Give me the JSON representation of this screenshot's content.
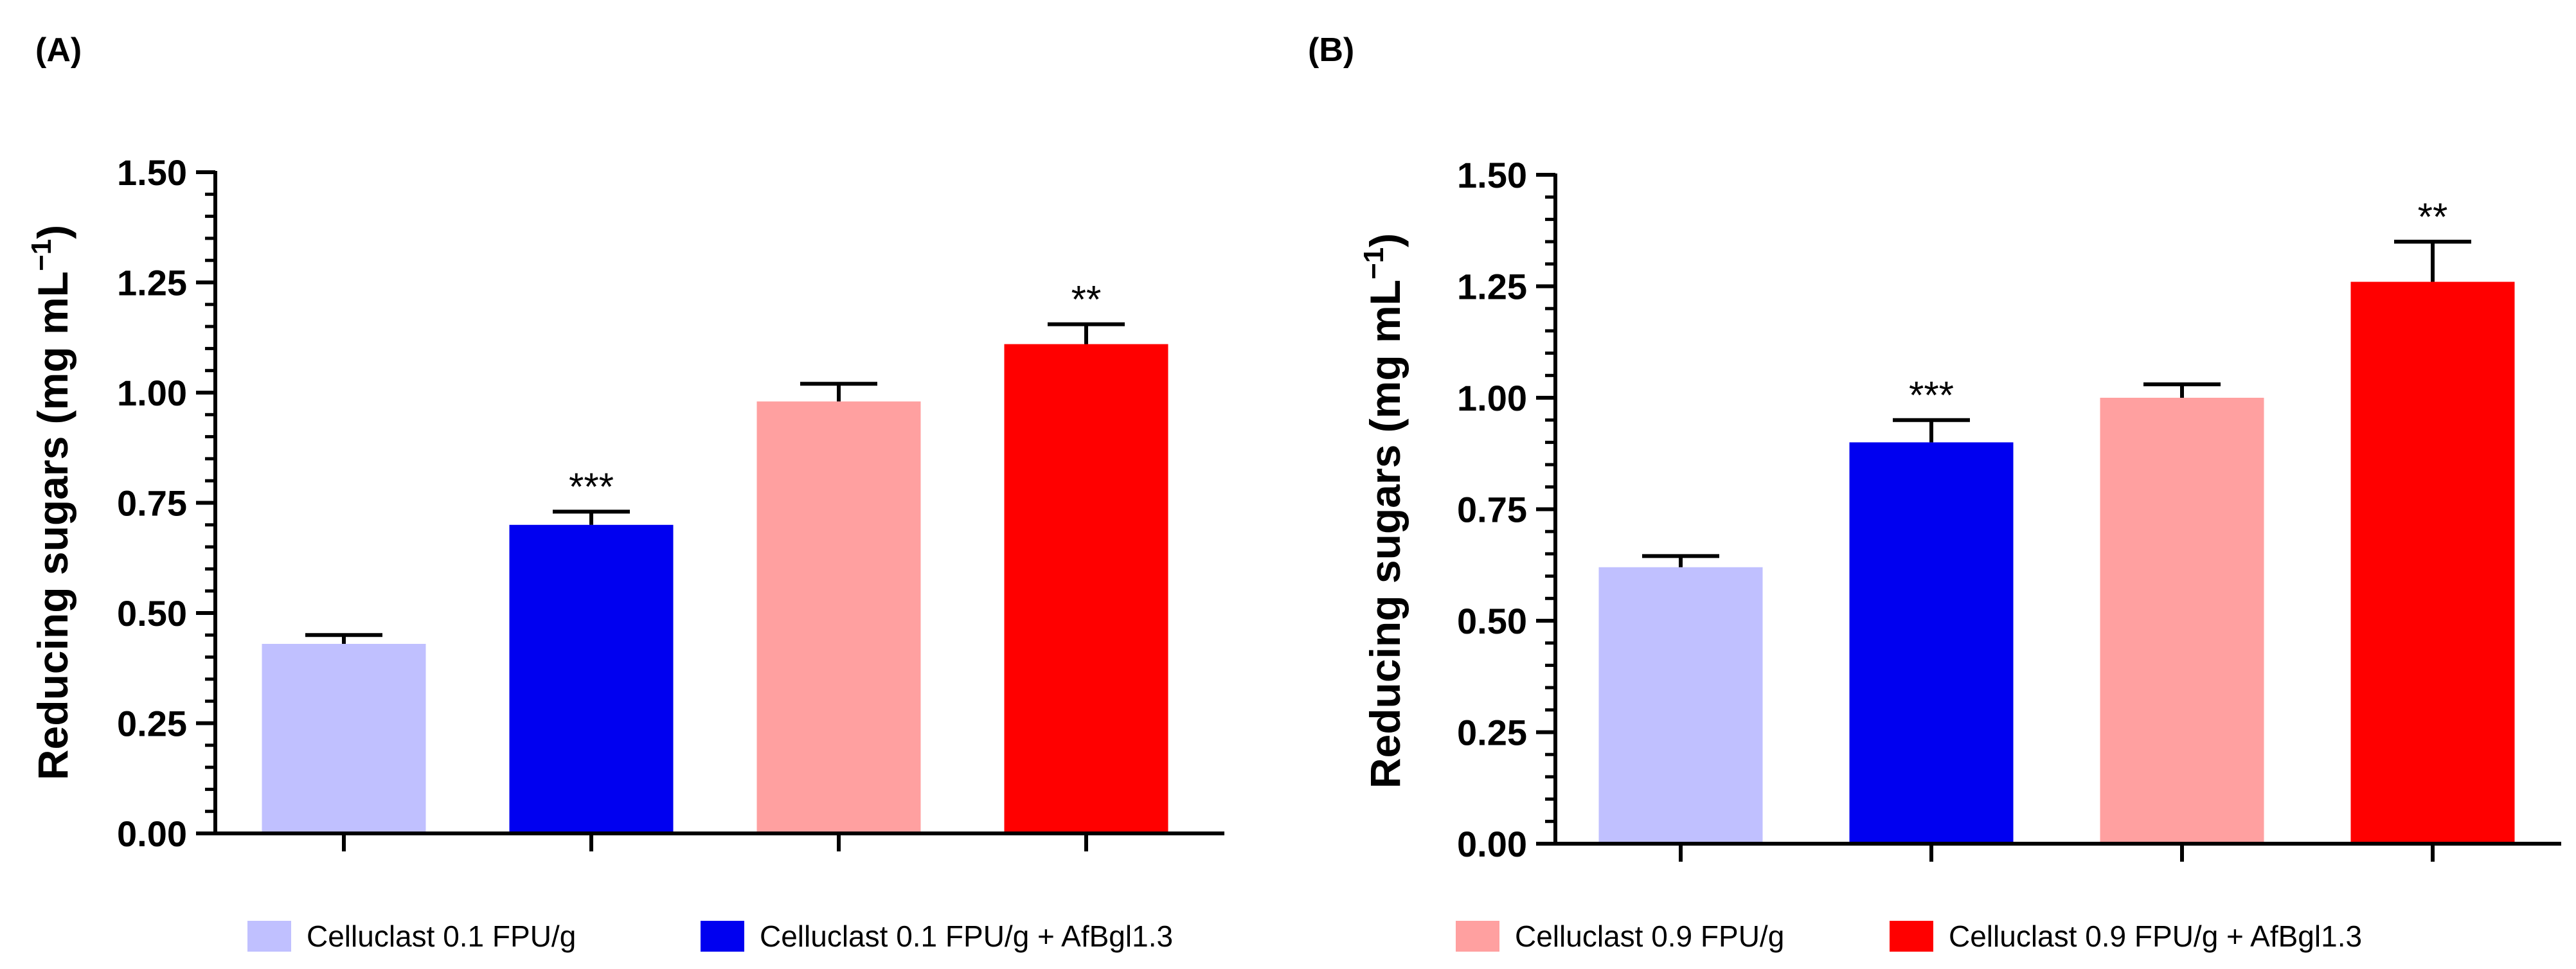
{
  "figure": {
    "legend": [
      {
        "label": "Celluclast 0.1 FPU/g",
        "color": "#c0c0ff"
      },
      {
        "label": "Celluclast 0.1 FPU/g + AfBgl1.3",
        "color": "#0000f0"
      },
      {
        "label": "Celluclast 0.9 FPU/g",
        "color": "#ffa0a0"
      },
      {
        "label": "Celluclast 0.9 FPU/g + AfBgl1.3",
        "color": "#ff0000"
      }
    ]
  },
  "chart_data": [
    {
      "type": "bar",
      "panel_label": "(A)",
      "ylabel": "Reducing sugars (mg mL",
      "ylabel_sup": "−1",
      "ylabel_close": ")",
      "ylim": [
        0,
        1.5
      ],
      "yticks": [
        "0.00",
        "0.25",
        "0.50",
        "0.75",
        "1.00",
        "1.25",
        "1.50"
      ],
      "grid": false,
      "categories": [
        "Celluclast 0.1 FPU/g",
        "Celluclast 0.1 FPU/g + AfBgl1.3",
        "Celluclast 0.9 FPU/g",
        "Celluclast 0.9 FPU/g + AfBgl1.3"
      ],
      "values": [
        0.43,
        0.7,
        0.98,
        1.11
      ],
      "errors": [
        0.02,
        0.03,
        0.04,
        0.045
      ],
      "significance": [
        "",
        "***",
        "",
        "**"
      ]
    },
    {
      "type": "bar",
      "panel_label": "(B)",
      "ylabel": "Reducing sugars (mg mL",
      "ylabel_sup": "−1",
      "ylabel_close": ")",
      "ylim": [
        0,
        1.5
      ],
      "yticks": [
        "0.00",
        "0.25",
        "0.50",
        "0.75",
        "1.00",
        "1.25",
        "1.50"
      ],
      "grid": false,
      "categories": [
        "Celluclast 0.1 FPU/g",
        "Celluclast 0.1 FPU/g + AfBgl1.3",
        "Celluclast 0.9 FPU/g",
        "Celluclast 0.9 FPU/g + AfBgl1.3"
      ],
      "values": [
        0.62,
        0.9,
        1.0,
        1.26
      ],
      "errors": [
        0.025,
        0.05,
        0.03,
        0.09
      ],
      "significance": [
        "",
        "***",
        "",
        "**"
      ]
    }
  ]
}
